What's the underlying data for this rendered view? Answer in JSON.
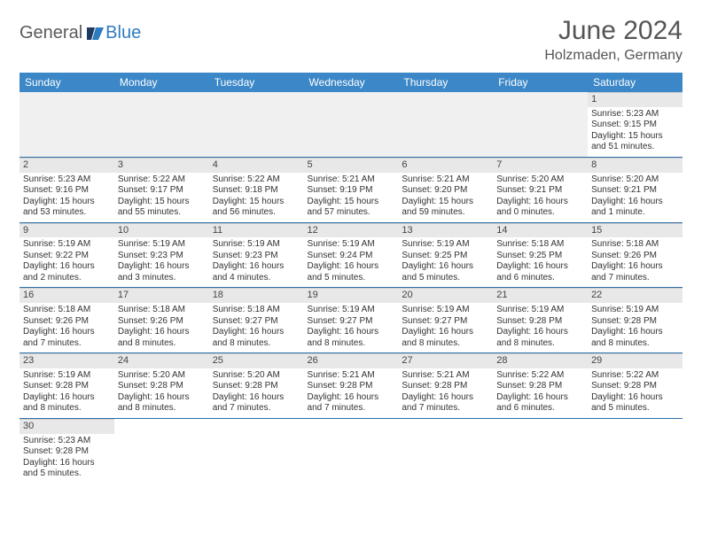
{
  "brand": {
    "part1": "General",
    "part2": "Blue"
  },
  "title": "June 2024",
  "location": "Holzmaden, Germany",
  "colors": {
    "header_bg": "#3c87c7",
    "header_text": "#ffffff",
    "daynum_bg": "#e8e8e8",
    "row_divider": "#2f6fa8",
    "body_text": "#333333",
    "title_text": "#555555",
    "logo_gray": "#5a5a5a",
    "logo_blue": "#2f7bbf"
  },
  "weekdays": [
    "Sunday",
    "Monday",
    "Tuesday",
    "Wednesday",
    "Thursday",
    "Friday",
    "Saturday"
  ],
  "weeks": [
    [
      null,
      null,
      null,
      null,
      null,
      null,
      {
        "n": "1",
        "sr": "Sunrise: 5:23 AM",
        "ss": "Sunset: 9:15 PM",
        "dl": "Daylight: 15 hours and 51 minutes."
      }
    ],
    [
      {
        "n": "2",
        "sr": "Sunrise: 5:23 AM",
        "ss": "Sunset: 9:16 PM",
        "dl": "Daylight: 15 hours and 53 minutes."
      },
      {
        "n": "3",
        "sr": "Sunrise: 5:22 AM",
        "ss": "Sunset: 9:17 PM",
        "dl": "Daylight: 15 hours and 55 minutes."
      },
      {
        "n": "4",
        "sr": "Sunrise: 5:22 AM",
        "ss": "Sunset: 9:18 PM",
        "dl": "Daylight: 15 hours and 56 minutes."
      },
      {
        "n": "5",
        "sr": "Sunrise: 5:21 AM",
        "ss": "Sunset: 9:19 PM",
        "dl": "Daylight: 15 hours and 57 minutes."
      },
      {
        "n": "6",
        "sr": "Sunrise: 5:21 AM",
        "ss": "Sunset: 9:20 PM",
        "dl": "Daylight: 15 hours and 59 minutes."
      },
      {
        "n": "7",
        "sr": "Sunrise: 5:20 AM",
        "ss": "Sunset: 9:21 PM",
        "dl": "Daylight: 16 hours and 0 minutes."
      },
      {
        "n": "8",
        "sr": "Sunrise: 5:20 AM",
        "ss": "Sunset: 9:21 PM",
        "dl": "Daylight: 16 hours and 1 minute."
      }
    ],
    [
      {
        "n": "9",
        "sr": "Sunrise: 5:19 AM",
        "ss": "Sunset: 9:22 PM",
        "dl": "Daylight: 16 hours and 2 minutes."
      },
      {
        "n": "10",
        "sr": "Sunrise: 5:19 AM",
        "ss": "Sunset: 9:23 PM",
        "dl": "Daylight: 16 hours and 3 minutes."
      },
      {
        "n": "11",
        "sr": "Sunrise: 5:19 AM",
        "ss": "Sunset: 9:23 PM",
        "dl": "Daylight: 16 hours and 4 minutes."
      },
      {
        "n": "12",
        "sr": "Sunrise: 5:19 AM",
        "ss": "Sunset: 9:24 PM",
        "dl": "Daylight: 16 hours and 5 minutes."
      },
      {
        "n": "13",
        "sr": "Sunrise: 5:19 AM",
        "ss": "Sunset: 9:25 PM",
        "dl": "Daylight: 16 hours and 5 minutes."
      },
      {
        "n": "14",
        "sr": "Sunrise: 5:18 AM",
        "ss": "Sunset: 9:25 PM",
        "dl": "Daylight: 16 hours and 6 minutes."
      },
      {
        "n": "15",
        "sr": "Sunrise: 5:18 AM",
        "ss": "Sunset: 9:26 PM",
        "dl": "Daylight: 16 hours and 7 minutes."
      }
    ],
    [
      {
        "n": "16",
        "sr": "Sunrise: 5:18 AM",
        "ss": "Sunset: 9:26 PM",
        "dl": "Daylight: 16 hours and 7 minutes."
      },
      {
        "n": "17",
        "sr": "Sunrise: 5:18 AM",
        "ss": "Sunset: 9:26 PM",
        "dl": "Daylight: 16 hours and 8 minutes."
      },
      {
        "n": "18",
        "sr": "Sunrise: 5:18 AM",
        "ss": "Sunset: 9:27 PM",
        "dl": "Daylight: 16 hours and 8 minutes."
      },
      {
        "n": "19",
        "sr": "Sunrise: 5:19 AM",
        "ss": "Sunset: 9:27 PM",
        "dl": "Daylight: 16 hours and 8 minutes."
      },
      {
        "n": "20",
        "sr": "Sunrise: 5:19 AM",
        "ss": "Sunset: 9:27 PM",
        "dl": "Daylight: 16 hours and 8 minutes."
      },
      {
        "n": "21",
        "sr": "Sunrise: 5:19 AM",
        "ss": "Sunset: 9:28 PM",
        "dl": "Daylight: 16 hours and 8 minutes."
      },
      {
        "n": "22",
        "sr": "Sunrise: 5:19 AM",
        "ss": "Sunset: 9:28 PM",
        "dl": "Daylight: 16 hours and 8 minutes."
      }
    ],
    [
      {
        "n": "23",
        "sr": "Sunrise: 5:19 AM",
        "ss": "Sunset: 9:28 PM",
        "dl": "Daylight: 16 hours and 8 minutes."
      },
      {
        "n": "24",
        "sr": "Sunrise: 5:20 AM",
        "ss": "Sunset: 9:28 PM",
        "dl": "Daylight: 16 hours and 8 minutes."
      },
      {
        "n": "25",
        "sr": "Sunrise: 5:20 AM",
        "ss": "Sunset: 9:28 PM",
        "dl": "Daylight: 16 hours and 7 minutes."
      },
      {
        "n": "26",
        "sr": "Sunrise: 5:21 AM",
        "ss": "Sunset: 9:28 PM",
        "dl": "Daylight: 16 hours and 7 minutes."
      },
      {
        "n": "27",
        "sr": "Sunrise: 5:21 AM",
        "ss": "Sunset: 9:28 PM",
        "dl": "Daylight: 16 hours and 7 minutes."
      },
      {
        "n": "28",
        "sr": "Sunrise: 5:22 AM",
        "ss": "Sunset: 9:28 PM",
        "dl": "Daylight: 16 hours and 6 minutes."
      },
      {
        "n": "29",
        "sr": "Sunrise: 5:22 AM",
        "ss": "Sunset: 9:28 PM",
        "dl": "Daylight: 16 hours and 5 minutes."
      }
    ],
    [
      {
        "n": "30",
        "sr": "Sunrise: 5:23 AM",
        "ss": "Sunset: 9:28 PM",
        "dl": "Daylight: 16 hours and 5 minutes."
      },
      null,
      null,
      null,
      null,
      null,
      null
    ]
  ]
}
